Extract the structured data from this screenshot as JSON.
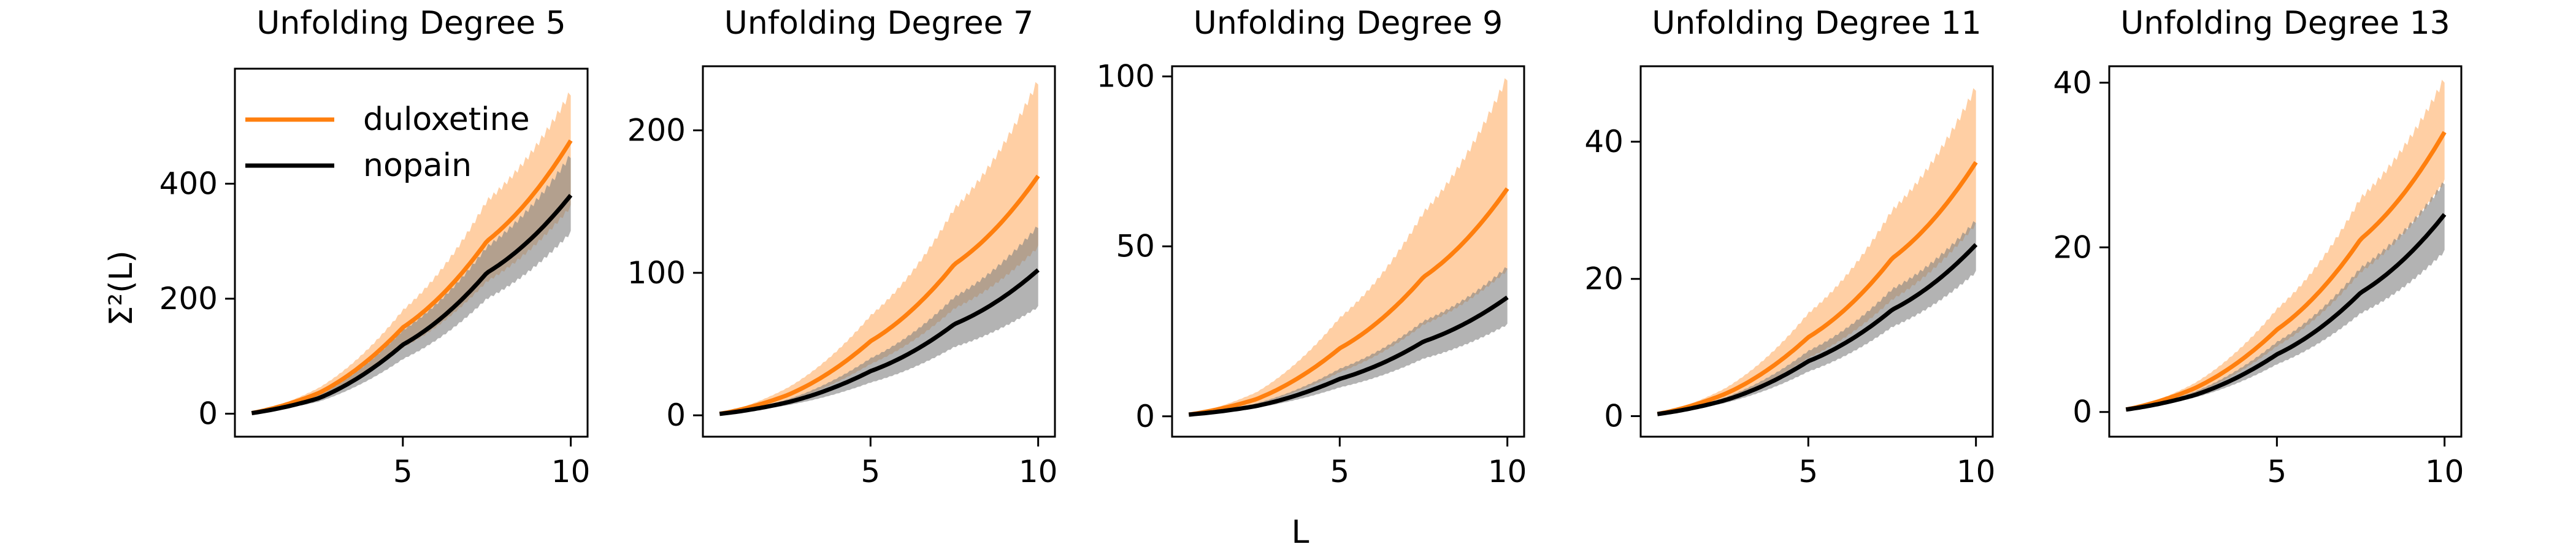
{
  "figure": {
    "xlabel": "L",
    "ylabel": "Σ²(L)"
  },
  "legend": {
    "placement": "upper-left of first panel",
    "entries": [
      "duloxetine",
      "nopain"
    ]
  },
  "colors": {
    "duloxetine": "#ff7f0e",
    "nopain": "#000000"
  },
  "chart_data": [
    {
      "type": "line",
      "title": "Unfolding Degree 5",
      "x": [
        0.5,
        2.5,
        5,
        7.5,
        10
      ],
      "xticks": [
        5,
        10
      ],
      "yticks": [
        0,
        200,
        400
      ],
      "xlim": [
        0,
        10.5
      ],
      "ylim": [
        -40,
        600
      ],
      "series": [
        {
          "name": "duloxetine",
          "mean": [
            1,
            36,
            150,
            300,
            475
          ],
          "lower": [
            1,
            27,
            115,
            230,
            360
          ],
          "upper": [
            1,
            45,
            180,
            370,
            560
          ]
        },
        {
          "name": "nopain",
          "mean": [
            1,
            27,
            120,
            245,
            380
          ],
          "lower": [
            1,
            21,
            95,
            200,
            315
          ],
          "upper": [
            1,
            32,
            145,
            290,
            450
          ]
        }
      ]
    },
    {
      "type": "line",
      "title": "Unfolding Degree 7",
      "x": [
        0.5,
        2.5,
        5,
        7.5,
        10
      ],
      "xticks": [
        5,
        10
      ],
      "yticks": [
        0,
        100,
        200
      ],
      "xlim": [
        0,
        10.5
      ],
      "ylim": [
        -15,
        245
      ],
      "series": [
        {
          "name": "duloxetine",
          "mean": [
            1,
            14,
            52,
            106,
            168
          ],
          "lower": [
            1,
            10,
            36,
            75,
            118
          ],
          "upper": [
            1,
            19,
            70,
            145,
            235
          ]
        },
        {
          "name": "nopain",
          "mean": [
            1,
            9,
            31,
            64,
            102
          ],
          "lower": [
            1,
            7,
            23,
            48,
            76
          ],
          "upper": [
            1,
            11,
            40,
            83,
            133
          ]
        }
      ]
    },
    {
      "type": "line",
      "title": "Unfolding Degree 9",
      "x": [
        0.5,
        2.5,
        5,
        7.5,
        10
      ],
      "xticks": [
        5,
        10
      ],
      "yticks": [
        0,
        50,
        100
      ],
      "xlim": [
        0,
        10.5
      ],
      "ylim": [
        -6,
        103
      ],
      "series": [
        {
          "name": "duloxetine",
          "mean": [
            0.5,
            5,
            20,
            41,
            67
          ],
          "lower": [
            0.5,
            3.5,
            13,
            27,
            43
          ],
          "upper": [
            0.5,
            7,
            29,
            60,
            100
          ]
        },
        {
          "name": "nopain",
          "mean": [
            0.5,
            3,
            11,
            22,
            35
          ],
          "lower": [
            0.5,
            2.5,
            8.5,
            17,
            27
          ],
          "upper": [
            0.5,
            3.8,
            14,
            28,
            44
          ]
        }
      ]
    },
    {
      "type": "line",
      "title": "Unfolding Degree 11",
      "x": [
        0.5,
        2.5,
        5,
        7.5,
        10
      ],
      "xticks": [
        5,
        10
      ],
      "yticks": [
        0,
        20,
        40
      ],
      "xlim": [
        0,
        10.5
      ],
      "ylim": [
        -3,
        51
      ],
      "series": [
        {
          "name": "duloxetine",
          "mean": [
            0.3,
            3.2,
            11.5,
            23,
            37
          ],
          "lower": [
            0.3,
            2.5,
            8.5,
            17,
            28
          ],
          "upper": [
            0.3,
            4,
            15,
            30,
            48
          ]
        },
        {
          "name": "nopain",
          "mean": [
            0.3,
            2.3,
            8,
            15.5,
            25
          ],
          "lower": [
            0.3,
            1.9,
            6.5,
            13,
            21
          ],
          "upper": [
            0.3,
            2.7,
            9.5,
            18.5,
            28.5
          ]
        }
      ]
    },
    {
      "type": "line",
      "title": "Unfolding Degree 13",
      "x": [
        0.5,
        2.5,
        5,
        7.5,
        10
      ],
      "xticks": [
        5,
        10
      ],
      "yticks": [
        0,
        20,
        40
      ],
      "xlim": [
        0,
        10.5
      ],
      "ylim": [
        -3,
        42
      ],
      "series": [
        {
          "name": "duloxetine",
          "mean": [
            0.3,
            2.8,
            10,
            21,
            34
          ],
          "lower": [
            0.3,
            2.2,
            8,
            17,
            28
          ],
          "upper": [
            0.3,
            3.4,
            12.5,
            26,
            40.5
          ]
        },
        {
          "name": "nopain",
          "mean": [
            0.3,
            2,
            7,
            14.5,
            24
          ],
          "lower": [
            0.3,
            1.7,
            5.8,
            12,
            19.5
          ],
          "upper": [
            0.3,
            2.4,
            8.5,
            17.5,
            28
          ]
        }
      ]
    }
  ]
}
